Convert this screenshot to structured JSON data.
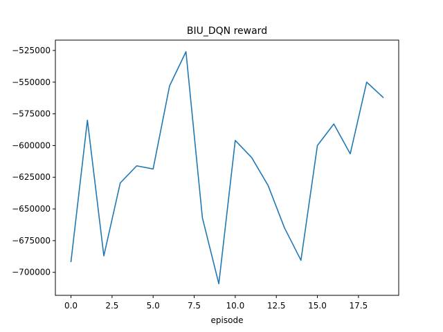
{
  "chart_data": {
    "type": "line",
    "title": "BIU_DQN reward",
    "xlabel": "episode",
    "ylabel": "",
    "x": [
      0,
      1,
      2,
      3,
      4,
      5,
      6,
      7,
      8,
      9,
      10,
      11,
      12,
      13,
      14,
      15,
      16,
      17,
      18,
      19
    ],
    "series": [
      {
        "values": [
          -691500,
          -580000,
          -687000,
          -629500,
          -616000,
          -618500,
          -553000,
          -526000,
          -657000,
          -709000,
          -596000,
          -609500,
          -631500,
          -665000,
          -690500,
          -600000,
          -583000,
          -606500,
          -550000,
          -562000
        ],
        "color": "#1f77b4"
      }
    ],
    "xlim": [
      -0.95,
      19.95
    ],
    "ylim": [
      -718150,
      -516850
    ],
    "xticks": [
      0,
      2.5,
      5,
      7.5,
      10,
      12.5,
      15,
      17.5
    ],
    "xtick_labels": [
      "0.0",
      "2.5",
      "5.0",
      "7.5",
      "10.0",
      "12.5",
      "15.0",
      "17.5"
    ],
    "yticks": [
      -525000,
      -550000,
      -575000,
      -600000,
      -625000,
      -650000,
      -675000,
      -700000
    ],
    "ytick_labels": [
      "−525000",
      "−550000",
      "−575000",
      "−600000",
      "−625000",
      "−650000",
      "−675000",
      "−700000"
    ],
    "grid": false,
    "legend": "none"
  }
}
